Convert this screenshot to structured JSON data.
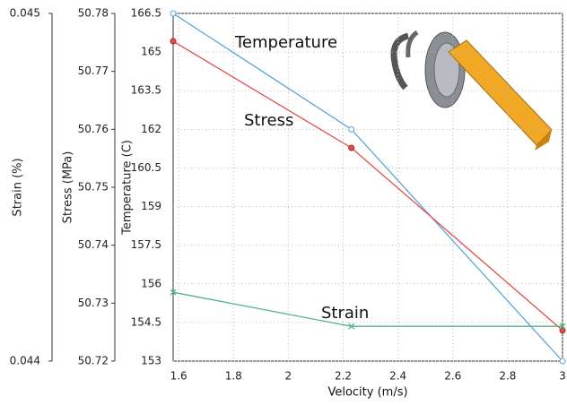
{
  "chart_data": {
    "type": "line",
    "xlabel": "Velocity (m/s)",
    "ylabel": "Temperature (C)",
    "y2label": "Stress (MPa)",
    "y3label": "Strain (%)",
    "x": [
      1.58,
      2.23,
      3
    ],
    "xlim": [
      1.58,
      3
    ],
    "xticks": [
      1.6,
      1.8,
      2,
      2.2,
      2.4,
      2.6,
      2.8,
      3
    ],
    "ylim": [
      153,
      166.5
    ],
    "yticks": [
      153,
      154.5,
      156,
      157.5,
      159,
      160.5,
      162,
      163.5,
      165,
      166.5
    ],
    "y2lim": [
      50.72,
      50.78
    ],
    "y2ticks": [
      50.72,
      50.73,
      50.74,
      50.75,
      50.76,
      50.77,
      50.78
    ],
    "y3lim": [
      0.044,
      0.045
    ],
    "y3ticks": [
      0.044,
      0.045
    ],
    "grid": true,
    "series": [
      {
        "name": "Temperature",
        "color": "#5aa5d8",
        "marker": "circle-open",
        "axis": "y",
        "values": [
          166.5,
          162,
          153
        ]
      },
      {
        "name": "Stress",
        "color": "#e0504c",
        "marker": "circle",
        "axis": "y2",
        "values": [
          50.7752,
          50.7568,
          50.7253
        ]
      },
      {
        "name": "Strain",
        "color": "#4cb38c",
        "marker": "x",
        "axis": "y3",
        "values": [
          0.044198,
          0.0441,
          0.0441
        ]
      }
    ]
  }
}
